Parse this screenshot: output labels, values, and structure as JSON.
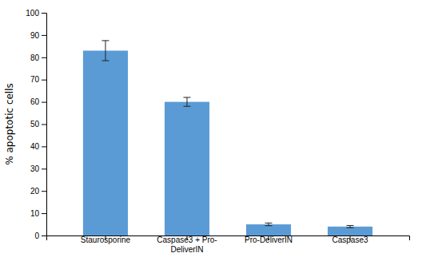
{
  "chart_data": {
    "type": "bar",
    "ylabel": "% apoptotic cells",
    "categories": [
      "Staurosporine",
      "Caspase3 + Pro-\nDeliverIN",
      "Pro-DeliverIN",
      "Caspase3"
    ],
    "values": [
      83,
      60,
      5,
      4
    ],
    "errors": [
      4.5,
      2.0,
      0.6,
      0.5
    ],
    "color": "#5b9bd5",
    "ylim": [
      0,
      100
    ],
    "yticks": [
      0,
      10,
      20,
      30,
      40,
      50,
      60,
      70,
      80,
      90,
      100
    ],
    "grid": false
  }
}
